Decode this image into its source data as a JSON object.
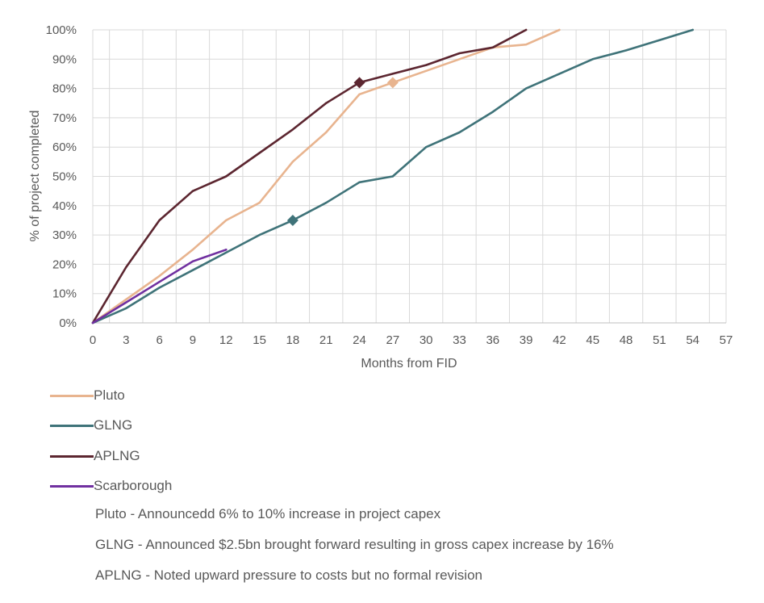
{
  "chart_data": {
    "type": "line",
    "xlabel": "Months from FID",
    "ylabel": "% of project completed",
    "xlim": [
      0,
      57
    ],
    "ylim": [
      0,
      100
    ],
    "x_ticks": [
      0,
      3,
      6,
      9,
      12,
      15,
      18,
      21,
      24,
      27,
      30,
      33,
      36,
      39,
      42,
      45,
      48,
      51,
      54,
      57
    ],
    "y_ticks": [
      0,
      10,
      20,
      30,
      40,
      50,
      60,
      70,
      80,
      90,
      100
    ],
    "y_tick_labels": [
      "0%",
      "10%",
      "20%",
      "30%",
      "40%",
      "50%",
      "60%",
      "70%",
      "80%",
      "90%",
      "100%"
    ],
    "grid": "both",
    "legend_placement": "below",
    "series": [
      {
        "name": "Pluto",
        "color": "#e8b48f",
        "points": [
          [
            0,
            0
          ],
          [
            3,
            8
          ],
          [
            6,
            16
          ],
          [
            9,
            25
          ],
          [
            12,
            35
          ],
          [
            15,
            41
          ],
          [
            18,
            55
          ],
          [
            21,
            65
          ],
          [
            24,
            78
          ],
          [
            27,
            82
          ],
          [
            30,
            86
          ],
          [
            33,
            90
          ],
          [
            36,
            94
          ],
          [
            39,
            95
          ],
          [
            42,
            100
          ]
        ],
        "marker": [
          27,
          82
        ]
      },
      {
        "name": "GLNG",
        "color": "#3f7379",
        "points": [
          [
            0,
            0
          ],
          [
            3,
            5
          ],
          [
            6,
            12
          ],
          [
            9,
            18
          ],
          [
            12,
            24
          ],
          [
            15,
            30
          ],
          [
            18,
            35
          ],
          [
            21,
            41
          ],
          [
            24,
            48
          ],
          [
            27,
            50
          ],
          [
            30,
            60
          ],
          [
            33,
            65
          ],
          [
            36,
            72
          ],
          [
            39,
            80
          ],
          [
            42,
            85
          ],
          [
            45,
            90
          ],
          [
            48,
            93
          ],
          [
            51,
            96.5
          ],
          [
            54,
            100
          ]
        ],
        "marker": [
          18,
          35
        ]
      },
      {
        "name": "APLNG",
        "color": "#5c2630",
        "points": [
          [
            0,
            0
          ],
          [
            3,
            19
          ],
          [
            6,
            35
          ],
          [
            9,
            45
          ],
          [
            12,
            50
          ],
          [
            15,
            58
          ],
          [
            18,
            66
          ],
          [
            21,
            75
          ],
          [
            24,
            82
          ],
          [
            27,
            85
          ],
          [
            30,
            88
          ],
          [
            33,
            92
          ],
          [
            36,
            94
          ],
          [
            39,
            100
          ]
        ],
        "marker": [
          24,
          82
        ]
      },
      {
        "name": "Scarborough",
        "color": "#7030a0",
        "points": [
          [
            0,
            0
          ],
          [
            3,
            7
          ],
          [
            6,
            14
          ],
          [
            9,
            21
          ],
          [
            12,
            25
          ]
        ]
      }
    ],
    "annotations": [
      "Pluto - Announcedd 6% to 10% increase in project capex",
      "GLNG - Announced $2.5bn brought forward resulting in gross capex increase by 16%",
      "APLNG - Noted upward pressure to costs but no formal revision"
    ]
  }
}
